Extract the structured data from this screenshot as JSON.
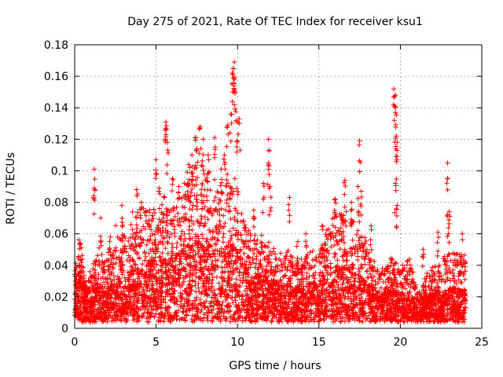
{
  "chart_data": {
    "type": "scatter",
    "title": "Day 275 of 2021, Rate Of TEC Index for receiver ksu1",
    "xlabel": "GPS time / hours",
    "ylabel": "ROTI / TECUs",
    "xlim": [
      0,
      25
    ],
    "ylim": [
      0,
      0.18
    ],
    "xticks": [
      "0",
      "5",
      "10",
      "15",
      "20",
      "25"
    ],
    "yticks": [
      "0",
      "0.02",
      "0.04",
      "0.06",
      "0.08",
      "0.1",
      "0.12",
      "0.14",
      "0.16",
      "0.18"
    ],
    "grid": true,
    "marker": "+",
    "color": "#ff0000",
    "series": [
      {
        "name": "",
        "envelope": [
          [
            0.0,
            0.02,
            0.035
          ],
          [
            0.3,
            0.035,
            0.055
          ],
          [
            0.6,
            0.02,
            0.03
          ],
          [
            1.0,
            0.022,
            0.035
          ],
          [
            1.5,
            0.025,
            0.045
          ],
          [
            2.0,
            0.02,
            0.04
          ],
          [
            2.5,
            0.025,
            0.06
          ],
          [
            3.0,
            0.028,
            0.055
          ],
          [
            3.5,
            0.032,
            0.065
          ],
          [
            4.0,
            0.035,
            0.068
          ],
          [
            4.5,
            0.038,
            0.072
          ],
          [
            5.0,
            0.04,
            0.07
          ],
          [
            5.5,
            0.042,
            0.075
          ],
          [
            6.0,
            0.04,
            0.07
          ],
          [
            6.5,
            0.045,
            0.08
          ],
          [
            7.0,
            0.05,
            0.09
          ],
          [
            7.5,
            0.052,
            0.095
          ],
          [
            8.0,
            0.05,
            0.09
          ],
          [
            8.5,
            0.048,
            0.085
          ],
          [
            9.0,
            0.045,
            0.08
          ],
          [
            9.5,
            0.05,
            0.09
          ],
          [
            10.0,
            0.045,
            0.085
          ],
          [
            10.5,
            0.035,
            0.06
          ],
          [
            11.0,
            0.03,
            0.055
          ],
          [
            11.5,
            0.03,
            0.055
          ],
          [
            12.0,
            0.028,
            0.05
          ],
          [
            12.5,
            0.025,
            0.045
          ],
          [
            13.0,
            0.025,
            0.045
          ],
          [
            13.5,
            0.022,
            0.04
          ],
          [
            14.0,
            0.022,
            0.04
          ],
          [
            14.5,
            0.025,
            0.045
          ],
          [
            15.0,
            0.025,
            0.045
          ],
          [
            15.5,
            0.028,
            0.055
          ],
          [
            16.0,
            0.035,
            0.075
          ],
          [
            16.5,
            0.035,
            0.07
          ],
          [
            17.0,
            0.033,
            0.065
          ],
          [
            17.5,
            0.03,
            0.06
          ],
          [
            18.0,
            0.025,
            0.05
          ],
          [
            18.5,
            0.022,
            0.04
          ],
          [
            19.0,
            0.02,
            0.035
          ],
          [
            19.5,
            0.02,
            0.04
          ],
          [
            20.0,
            0.018,
            0.035
          ],
          [
            20.5,
            0.018,
            0.04
          ],
          [
            21.0,
            0.015,
            0.025
          ],
          [
            21.5,
            0.015,
            0.03
          ],
          [
            22.0,
            0.018,
            0.035
          ],
          [
            22.5,
            0.02,
            0.04
          ],
          [
            23.0,
            0.022,
            0.045
          ],
          [
            23.5,
            0.022,
            0.045
          ],
          [
            24.0,
            0.02,
            0.04
          ]
        ],
        "peaks": [
          [
            0.35,
            0.054
          ],
          [
            1.2,
            0.101
          ],
          [
            1.2,
            0.089
          ],
          [
            1.6,
            0.07
          ],
          [
            2.2,
            0.058
          ],
          [
            2.9,
            0.078
          ],
          [
            3.8,
            0.088
          ],
          [
            4.1,
            0.08
          ],
          [
            4.6,
            0.075
          ],
          [
            5.0,
            0.107
          ],
          [
            5.2,
            0.089
          ],
          [
            5.6,
            0.131
          ],
          [
            5.6,
            0.127
          ],
          [
            5.7,
            0.118
          ],
          [
            6.0,
            0.095
          ],
          [
            6.4,
            0.09
          ],
          [
            6.8,
            0.085
          ],
          [
            7.0,
            0.104
          ],
          [
            7.2,
            0.11
          ],
          [
            7.4,
            0.121
          ],
          [
            7.5,
            0.114
          ],
          [
            7.7,
            0.128
          ],
          [
            7.9,
            0.12
          ],
          [
            8.2,
            0.11
          ],
          [
            8.6,
            0.121
          ],
          [
            9.0,
            0.101
          ],
          [
            9.2,
            0.11
          ],
          [
            9.4,
            0.129
          ],
          [
            9.6,
            0.136
          ],
          [
            9.7,
            0.162
          ],
          [
            9.75,
            0.165
          ],
          [
            9.8,
            0.169
          ],
          [
            9.8,
            0.158
          ],
          [
            9.85,
            0.15
          ],
          [
            10.0,
            0.131
          ],
          [
            10.1,
            0.133
          ],
          [
            11.0,
            0.075
          ],
          [
            11.6,
            0.092
          ],
          [
            11.9,
            0.12
          ],
          [
            11.9,
            0.105
          ],
          [
            12.0,
            0.09
          ],
          [
            13.2,
            0.083
          ],
          [
            13.7,
            0.055
          ],
          [
            14.2,
            0.06
          ],
          [
            15.2,
            0.065
          ],
          [
            16.0,
            0.082
          ],
          [
            16.6,
            0.094
          ],
          [
            17.0,
            0.08
          ],
          [
            17.4,
            0.09
          ],
          [
            17.5,
            0.119
          ],
          [
            17.6,
            0.087
          ],
          [
            18.2,
            0.065
          ],
          [
            19.6,
            0.152
          ],
          [
            19.7,
            0.148
          ],
          [
            19.7,
            0.137
          ],
          [
            19.75,
            0.122
          ],
          [
            19.8,
            0.113
          ],
          [
            19.7,
            0.092
          ],
          [
            19.8,
            0.078
          ],
          [
            21.4,
            0.05
          ],
          [
            22.3,
            0.061
          ],
          [
            22.4,
            0.04
          ],
          [
            22.9,
            0.105
          ],
          [
            22.9,
            0.072
          ],
          [
            23.0,
            0.074
          ],
          [
            23.8,
            0.06
          ]
        ]
      }
    ]
  }
}
